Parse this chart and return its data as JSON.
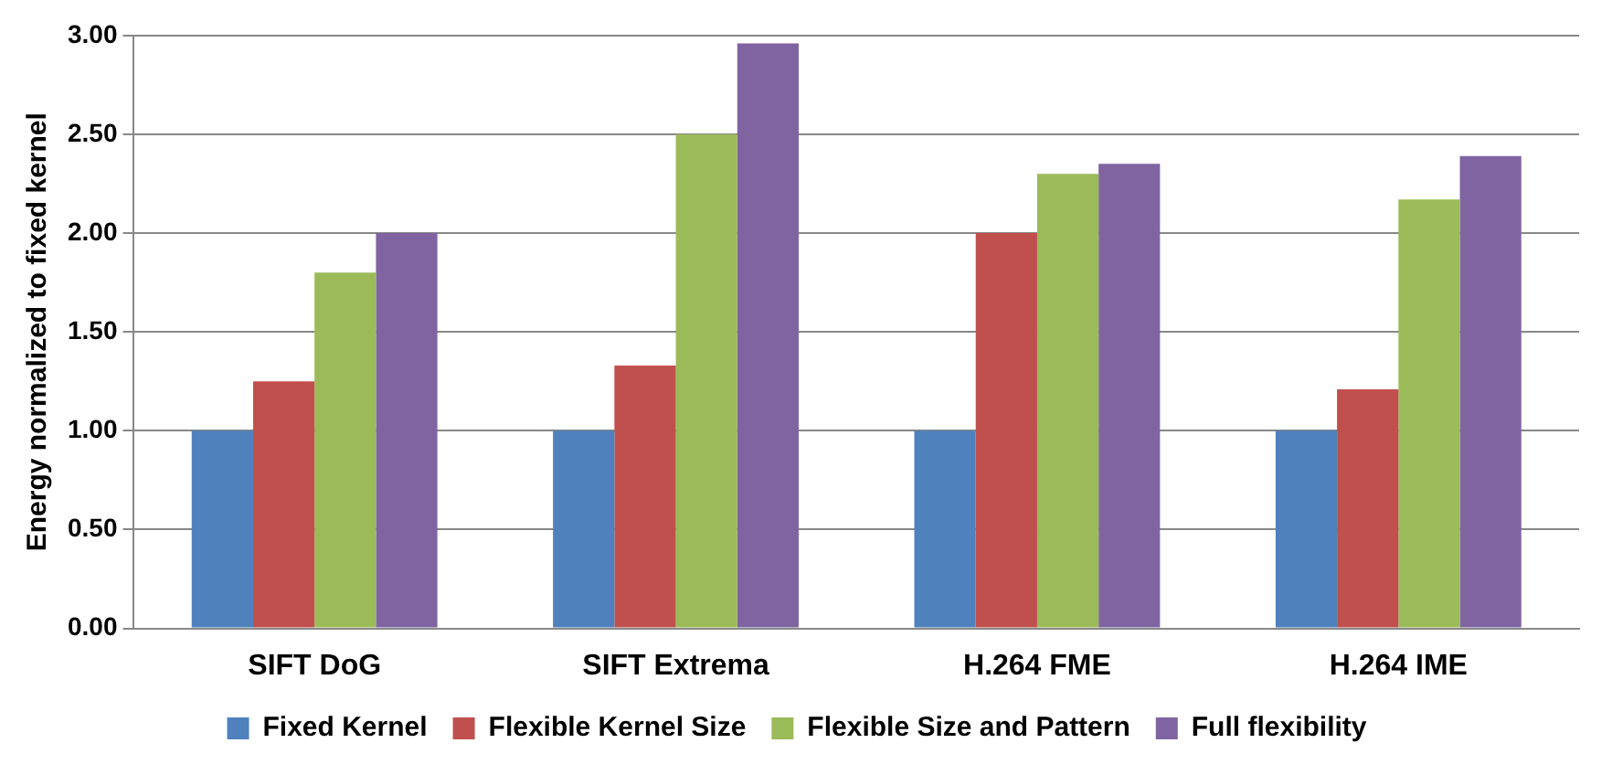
{
  "chart_data": {
    "type": "bar",
    "ylabel": "Energy normalized to fixed kernel",
    "categories": [
      "SIFT DoG",
      "SIFT Extrema",
      "H.264 FME",
      "H.264 IME"
    ],
    "series": [
      {
        "name": "Fixed Kernel",
        "color": "#4f81bd",
        "values": [
          1.0,
          1.0,
          1.0,
          1.0
        ]
      },
      {
        "name": "Flexible Kernel Size",
        "color": "#c0504d",
        "values": [
          1.25,
          1.33,
          2.0,
          1.21
        ]
      },
      {
        "name": "Flexible Size and Pattern",
        "color": "#9bbb59",
        "values": [
          1.8,
          2.5,
          2.3,
          2.17
        ]
      },
      {
        "name": "Full flexibility",
        "color": "#8064a2",
        "values": [
          2.0,
          2.96,
          2.35,
          2.39
        ]
      }
    ],
    "ylim": [
      0,
      3
    ],
    "yticks": [
      {
        "value": 0,
        "label": "0.00"
      },
      {
        "value": 0.5,
        "label": "0.50"
      },
      {
        "value": 1,
        "label": "1.00"
      },
      {
        "value": 1.5,
        "label": "1.50"
      },
      {
        "value": 2,
        "label": "2.00"
      },
      {
        "value": 2.5,
        "label": "2.50"
      },
      {
        "value": 3,
        "label": "3.00"
      }
    ],
    "grid": "y",
    "legend": "bottom"
  }
}
